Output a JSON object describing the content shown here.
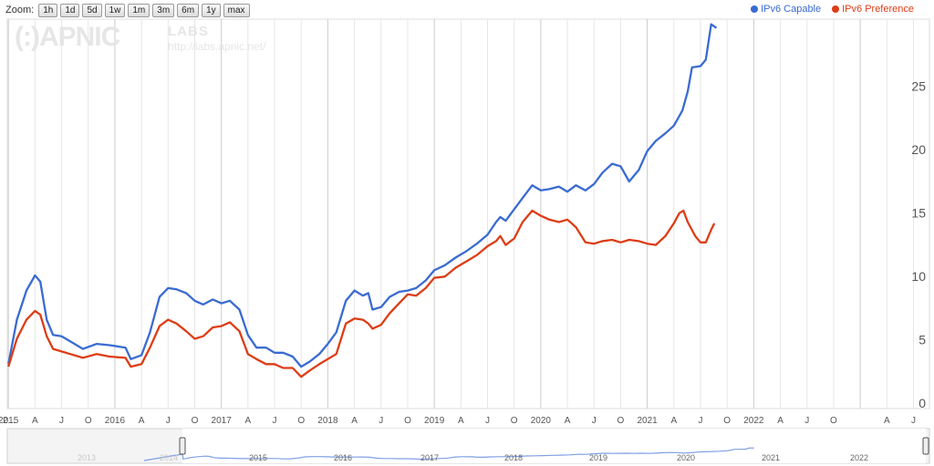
{
  "zoom": {
    "label": "Zoom:",
    "buttons": [
      "1h",
      "1d",
      "5d",
      "1w",
      "1m",
      "3m",
      "6m",
      "1y",
      "max"
    ]
  },
  "watermark": {
    "logo": "(:)APNIC",
    "labs": "LABS",
    "url": "http://labs.apnic.net/"
  },
  "colors": {
    "capable": "#3a6bd1",
    "preference": "#dd3d16",
    "grid": "#e6e6e6",
    "text": "#555555"
  },
  "chart_data": {
    "type": "line",
    "title": "",
    "xlabel": "",
    "ylabel": "",
    "x_range": [
      2013.99,
      2022.65
    ],
    "ylim": [
      -0.5,
      30.2
    ],
    "y_ticks": [
      0,
      5,
      10,
      15,
      20,
      25
    ],
    "grid": true,
    "legend": "top-right",
    "year_labels": [
      "2015",
      "2016",
      "2017",
      "2018",
      "2019",
      "2020",
      "2021",
      "2022"
    ],
    "month_labels": [
      "A",
      "J",
      "O"
    ],
    "left_edge_label": "2...",
    "series": [
      {
        "name": "IPv6 Capable",
        "color": "#3a6bd1",
        "points": [
          [
            2014.0,
            3.0
          ],
          [
            2014.08,
            6.5
          ],
          [
            2014.17,
            8.8
          ],
          [
            2014.25,
            10.0
          ],
          [
            2014.3,
            9.5
          ],
          [
            2014.36,
            6.5
          ],
          [
            2014.42,
            5.3
          ],
          [
            2014.5,
            5.2
          ],
          [
            2014.58,
            4.8
          ],
          [
            2014.7,
            4.2
          ],
          [
            2014.83,
            4.6
          ],
          [
            2014.95,
            4.5
          ],
          [
            2015.1,
            4.3
          ],
          [
            2015.15,
            3.4
          ],
          [
            2015.25,
            3.7
          ],
          [
            2015.33,
            5.5
          ],
          [
            2015.42,
            8.3
          ],
          [
            2015.5,
            9.0
          ],
          [
            2015.58,
            8.9
          ],
          [
            2015.67,
            8.6
          ],
          [
            2015.75,
            8.0
          ],
          [
            2015.83,
            7.7
          ],
          [
            2015.92,
            8.1
          ],
          [
            2016.0,
            7.8
          ],
          [
            2016.08,
            8.0
          ],
          [
            2016.17,
            7.3
          ],
          [
            2016.25,
            5.3
          ],
          [
            2016.33,
            4.3
          ],
          [
            2016.42,
            4.3
          ],
          [
            2016.5,
            3.9
          ],
          [
            2016.58,
            3.9
          ],
          [
            2016.67,
            3.6
          ],
          [
            2016.75,
            2.8
          ],
          [
            2016.83,
            3.2
          ],
          [
            2016.92,
            3.8
          ],
          [
            2017.0,
            4.6
          ],
          [
            2017.08,
            5.5
          ],
          [
            2017.17,
            8.0
          ],
          [
            2017.25,
            8.8
          ],
          [
            2017.33,
            8.4
          ],
          [
            2017.38,
            8.6
          ],
          [
            2017.42,
            7.3
          ],
          [
            2017.5,
            7.5
          ],
          [
            2017.58,
            8.3
          ],
          [
            2017.67,
            8.7
          ],
          [
            2017.75,
            8.8
          ],
          [
            2017.83,
            9.0
          ],
          [
            2017.92,
            9.6
          ],
          [
            2018.0,
            10.4
          ],
          [
            2018.1,
            10.8
          ],
          [
            2018.2,
            11.4
          ],
          [
            2018.3,
            11.9
          ],
          [
            2018.4,
            12.5
          ],
          [
            2018.5,
            13.2
          ],
          [
            2018.58,
            14.2
          ],
          [
            2018.62,
            14.6
          ],
          [
            2018.67,
            14.3
          ],
          [
            2018.75,
            15.2
          ],
          [
            2018.83,
            16.1
          ],
          [
            2018.92,
            17.1
          ],
          [
            2019.0,
            16.7
          ],
          [
            2019.08,
            16.8
          ],
          [
            2019.17,
            17.0
          ],
          [
            2019.25,
            16.6
          ],
          [
            2019.33,
            17.1
          ],
          [
            2019.42,
            16.7
          ],
          [
            2019.5,
            17.2
          ],
          [
            2019.58,
            18.1
          ],
          [
            2019.67,
            18.8
          ],
          [
            2019.75,
            18.6
          ],
          [
            2019.83,
            17.4
          ],
          [
            2019.92,
            18.3
          ],
          [
            2020.0,
            19.8
          ],
          [
            2020.08,
            20.6
          ],
          [
            2020.17,
            21.2
          ],
          [
            2020.25,
            21.8
          ],
          [
            2020.33,
            23.0
          ],
          [
            2020.38,
            24.5
          ],
          [
            2020.42,
            26.4
          ],
          [
            2020.5,
            26.5
          ],
          [
            2020.55,
            27.0
          ],
          [
            2020.6,
            29.8
          ],
          [
            2020.65,
            29.5
          ]
        ]
      },
      {
        "name": "IPv6 Preference",
        "color": "#dd3d16",
        "points": [
          [
            2014.0,
            2.8
          ],
          [
            2014.08,
            5.0
          ],
          [
            2014.17,
            6.5
          ],
          [
            2014.25,
            7.2
          ],
          [
            2014.3,
            6.9
          ],
          [
            2014.36,
            5.2
          ],
          [
            2014.42,
            4.2
          ],
          [
            2014.5,
            4.0
          ],
          [
            2014.58,
            3.8
          ],
          [
            2014.7,
            3.5
          ],
          [
            2014.83,
            3.8
          ],
          [
            2014.95,
            3.6
          ],
          [
            2015.1,
            3.5
          ],
          [
            2015.15,
            2.8
          ],
          [
            2015.25,
            3.0
          ],
          [
            2015.33,
            4.3
          ],
          [
            2015.42,
            6.0
          ],
          [
            2015.5,
            6.5
          ],
          [
            2015.58,
            6.2
          ],
          [
            2015.67,
            5.6
          ],
          [
            2015.75,
            5.0
          ],
          [
            2015.83,
            5.2
          ],
          [
            2015.92,
            5.9
          ],
          [
            2016.0,
            6.0
          ],
          [
            2016.08,
            6.3
          ],
          [
            2016.17,
            5.6
          ],
          [
            2016.25,
            3.8
          ],
          [
            2016.33,
            3.4
          ],
          [
            2016.42,
            3.0
          ],
          [
            2016.5,
            3.0
          ],
          [
            2016.58,
            2.7
          ],
          [
            2016.67,
            2.7
          ],
          [
            2016.75,
            2.0
          ],
          [
            2016.83,
            2.5
          ],
          [
            2016.92,
            3.0
          ],
          [
            2017.0,
            3.4
          ],
          [
            2017.08,
            3.8
          ],
          [
            2017.17,
            6.2
          ],
          [
            2017.25,
            6.6
          ],
          [
            2017.33,
            6.5
          ],
          [
            2017.38,
            6.2
          ],
          [
            2017.42,
            5.8
          ],
          [
            2017.5,
            6.1
          ],
          [
            2017.58,
            7.0
          ],
          [
            2017.67,
            7.8
          ],
          [
            2017.75,
            8.5
          ],
          [
            2017.83,
            8.4
          ],
          [
            2017.92,
            9.0
          ],
          [
            2018.0,
            9.8
          ],
          [
            2018.1,
            9.9
          ],
          [
            2018.2,
            10.6
          ],
          [
            2018.3,
            11.1
          ],
          [
            2018.4,
            11.6
          ],
          [
            2018.5,
            12.3
          ],
          [
            2018.58,
            12.7
          ],
          [
            2018.62,
            13.1
          ],
          [
            2018.67,
            12.4
          ],
          [
            2018.75,
            12.9
          ],
          [
            2018.83,
            14.2
          ],
          [
            2018.92,
            15.1
          ],
          [
            2019.0,
            14.7
          ],
          [
            2019.08,
            14.4
          ],
          [
            2019.17,
            14.2
          ],
          [
            2019.25,
            14.4
          ],
          [
            2019.33,
            13.8
          ],
          [
            2019.42,
            12.6
          ],
          [
            2019.5,
            12.5
          ],
          [
            2019.58,
            12.7
          ],
          [
            2019.67,
            12.8
          ],
          [
            2019.75,
            12.6
          ],
          [
            2019.83,
            12.8
          ],
          [
            2019.92,
            12.7
          ],
          [
            2020.0,
            12.5
          ],
          [
            2020.08,
            12.4
          ],
          [
            2020.17,
            13.1
          ],
          [
            2020.25,
            14.1
          ],
          [
            2020.3,
            14.9
          ],
          [
            2020.34,
            15.1
          ],
          [
            2020.38,
            14.2
          ],
          [
            2020.45,
            13.1
          ],
          [
            2020.5,
            12.6
          ],
          [
            2020.55,
            12.6
          ],
          [
            2020.6,
            13.6
          ],
          [
            2020.63,
            14.1
          ]
        ]
      }
    ]
  }
}
